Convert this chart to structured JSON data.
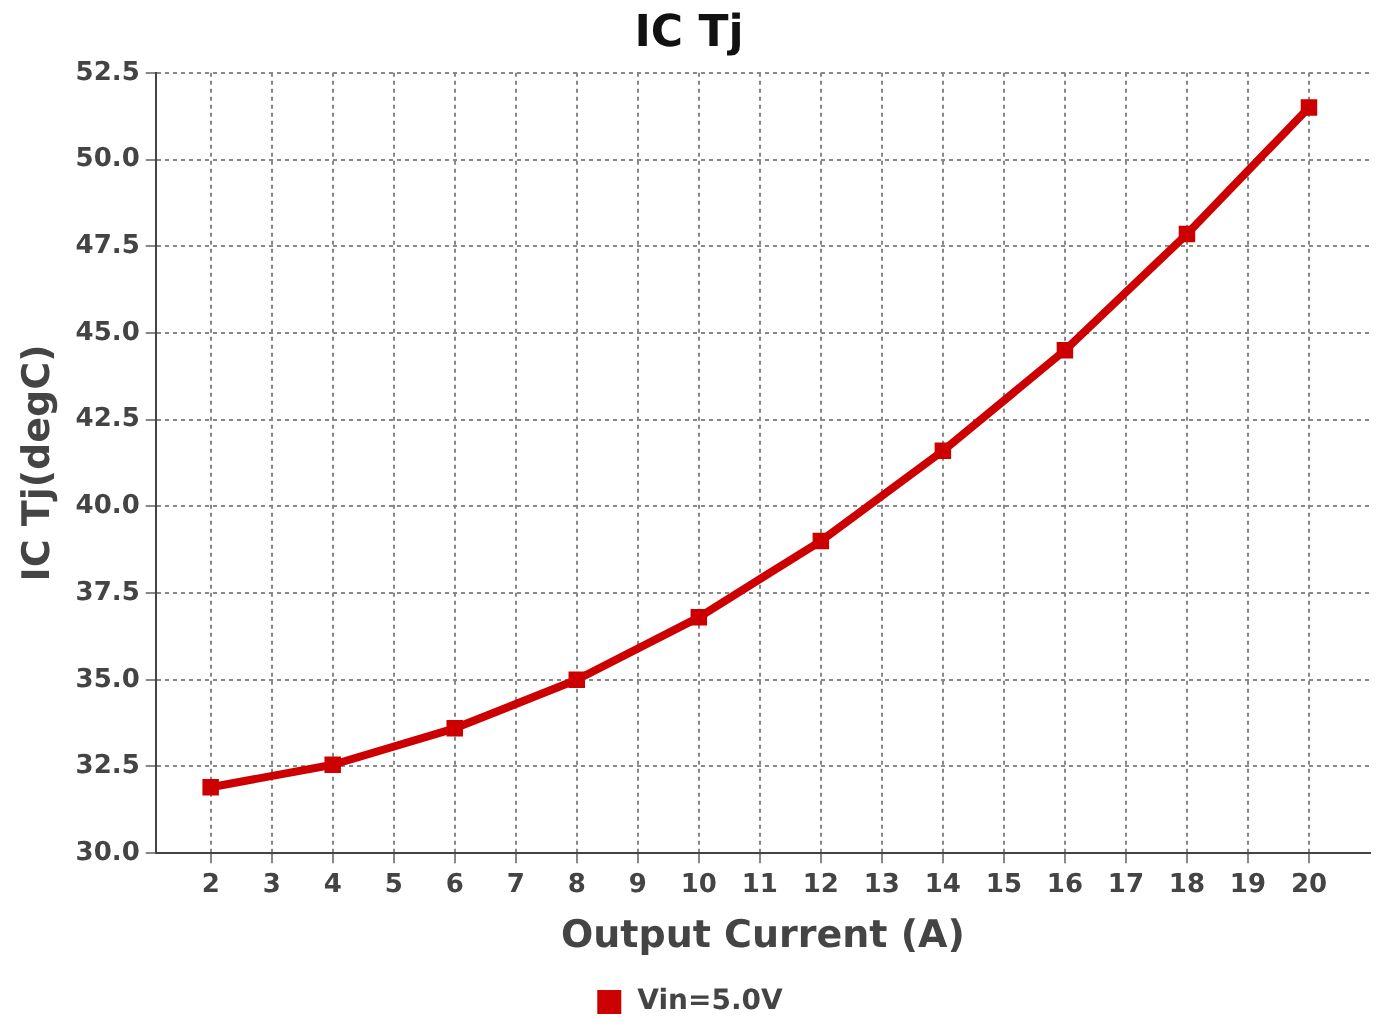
{
  "chart_data": {
    "type": "line",
    "title": "IC Tj",
    "xlabel": "Output Current (A)",
    "ylabel": "IC Tj(degC)",
    "x": [
      2,
      4,
      6,
      8,
      10,
      12,
      14,
      16,
      18,
      20
    ],
    "series": [
      {
        "name": "Vin=5.0V",
        "color": "#cc0000",
        "values": [
          31.9,
          32.55,
          33.6,
          35.0,
          36.8,
          39.0,
          41.6,
          44.5,
          47.85,
          51.5
        ]
      }
    ],
    "xlim": [
      1.1,
      21
    ],
    "xticks": [
      2,
      3,
      4,
      5,
      6,
      7,
      8,
      9,
      10,
      11,
      12,
      13,
      14,
      15,
      16,
      17,
      18,
      19,
      20
    ],
    "ylim": [
      30,
      52.5
    ],
    "yticks": [
      {
        "value": 30,
        "label": "30.0"
      },
      {
        "value": 32.5,
        "label": "32.5"
      },
      {
        "value": 35,
        "label": "35.0"
      },
      {
        "value": 37.5,
        "label": "37.5"
      },
      {
        "value": 40,
        "label": "40.0"
      },
      {
        "value": 42.5,
        "label": "42.5"
      },
      {
        "value": 45,
        "label": "45.0"
      },
      {
        "value": 47.5,
        "label": "47.5"
      },
      {
        "value": 50,
        "label": "50.0"
      },
      {
        "value": 52.5,
        "label": "52.5"
      }
    ],
    "grid": true,
    "legend": "bottom",
    "marker": "square",
    "line_style": "solid"
  }
}
